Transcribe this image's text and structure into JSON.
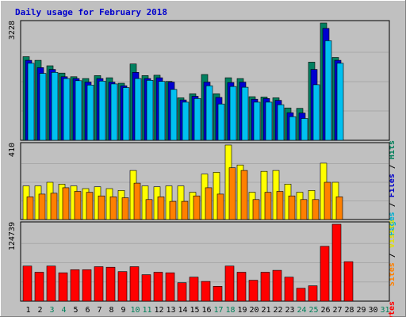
{
  "chart_data": {
    "type": "bar",
    "title": "Daily usage for February 2018",
    "title_color": "#0000cc",
    "x": [
      "1",
      "2",
      "3",
      "4",
      "5",
      "6",
      "7",
      "8",
      "9",
      "10",
      "11",
      "12",
      "13",
      "14",
      "15",
      "16",
      "17",
      "18",
      "19",
      "20",
      "21",
      "22",
      "23",
      "24",
      "25",
      "26",
      "27",
      "28",
      "29",
      "30",
      "31"
    ],
    "weekend_days": [
      "3",
      "4",
      "10",
      "11",
      "17",
      "18",
      "24",
      "25",
      "31"
    ],
    "x_colors": {
      "weekday": "#000000",
      "weekend": "#00805a"
    },
    "grid": true,
    "legend": "right",
    "panels": [
      {
        "id": "hits",
        "max_label": "3228",
        "ylim": [
          0,
          3228
        ],
        "labels": [
          {
            "text": "Pages",
            "color": "#00b0d0"
          },
          {
            "text": " / ",
            "color": "#000000"
          },
          {
            "text": "Files",
            "color": "#0000cc"
          },
          {
            "text": " / ",
            "color": "#000000"
          },
          {
            "text": "Hits",
            "color": "#00805a"
          }
        ],
        "series": [
          {
            "name": "Hits",
            "color": "#008060",
            "values": [
              2300,
              2200,
              2050,
              1850,
              1750,
              1700,
              1780,
              1720,
              1570,
              2100,
              1780,
              1790,
              1620,
              1170,
              1280,
              1810,
              1280,
              1720,
              1700,
              1200,
              1190,
              1170,
              890,
              880,
              2150,
              3230,
              2280,
              null,
              null,
              null,
              null
            ]
          },
          {
            "name": "Files",
            "color": "#0000d0",
            "values": [
              2200,
              2000,
              1950,
              1750,
              1700,
              1600,
              1700,
              1600,
              1500,
              1870,
              1700,
              1720,
              1600,
              1110,
              1210,
              1600,
              1180,
              1590,
              1600,
              1130,
              1150,
              1100,
              760,
              750,
              1950,
              3080,
              2200,
              null,
              null,
              null,
              null
            ]
          },
          {
            "name": "Pages",
            "color": "#00c0f0",
            "values": [
              2120,
              1840,
              1870,
              1700,
              1640,
              1520,
              1630,
              1550,
              1450,
              1700,
              1650,
              1620,
              1400,
              1050,
              1150,
              1500,
              1000,
              1480,
              1460,
              1050,
              1050,
              980,
              650,
              600,
              1530,
              2740,
              2120,
              null,
              null,
              null,
              null
            ]
          }
        ]
      },
      {
        "id": "visits",
        "max_label": "410",
        "ylim": [
          0,
          410
        ],
        "labels": [
          {
            "text": "Sites",
            "color": "#ff8000"
          },
          {
            "text": " / ",
            "color": "#000000"
          },
          {
            "text": "Visits",
            "color": "#e0e000"
          }
        ],
        "series": [
          {
            "name": "Visits",
            "color": "#ffff00",
            "values": [
              185,
              185,
              205,
              195,
              185,
              170,
              180,
              170,
              160,
              270,
              185,
              180,
              185,
              185,
              150,
              250,
              260,
              410,
              300,
              150,
              265,
              270,
              195,
              150,
              160,
              310,
              205,
              null,
              null,
              null,
              null
            ]
          },
          {
            "name": "Sites",
            "color": "#ff8000",
            "values": [
              125,
              140,
              145,
              175,
              155,
              150,
              130,
              125,
              120,
              200,
              110,
              125,
              100,
              100,
              130,
              175,
              140,
              285,
              270,
              110,
              150,
              155,
              130,
              110,
              110,
              205,
              125,
              null,
              null,
              null,
              null
            ]
          }
        ]
      },
      {
        "id": "kbytes",
        "max_label": "124739",
        "ylim": [
          0,
          124739
        ],
        "labels": [
          {
            "text": "KBytes",
            "color": "#ff0000"
          }
        ],
        "series": [
          {
            "name": "KBytes",
            "color": "#ff0000",
            "values": [
              57000,
              47000,
              57000,
              46000,
              51000,
              51000,
              56000,
              55000,
              48000,
              56000,
              43000,
              47000,
              46000,
              30000,
              39000,
              32000,
              24000,
              57000,
              47000,
              34000,
              47000,
              50000,
              39000,
              21000,
              25000,
              89000,
              124739,
              64000,
              null,
              null,
              null
            ]
          }
        ]
      }
    ]
  }
}
